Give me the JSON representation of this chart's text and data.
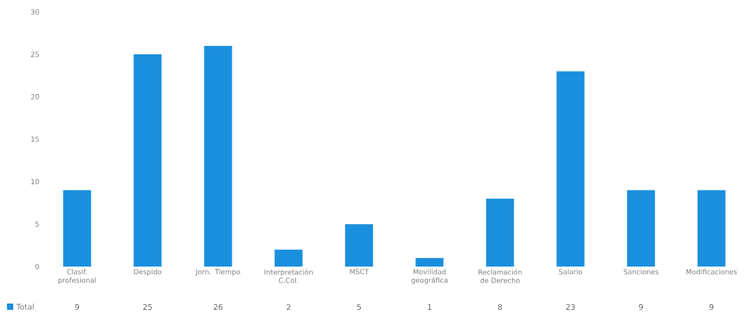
{
  "chart_data": {
    "type": "bar",
    "categories": [
      "Clasif. profesional",
      "Despido",
      "Jorn. Tiempo",
      "Interpretación C.Col.",
      "MSCT",
      "Movilidad geográfica",
      "Reclamación de Derecho",
      "Salario",
      "Sanciones",
      "Modificaciones"
    ],
    "series": [
      {
        "name": "Total",
        "color": "#1a8fdd",
        "values": [
          9,
          25,
          26,
          2,
          5,
          1,
          8,
          23,
          9,
          9
        ]
      }
    ],
    "ylim": [
      0,
      30
    ],
    "yticks": [
      0,
      5,
      10,
      15,
      20,
      25,
      30
    ],
    "data_labels": true,
    "legend": "bottom left",
    "grid": false
  }
}
